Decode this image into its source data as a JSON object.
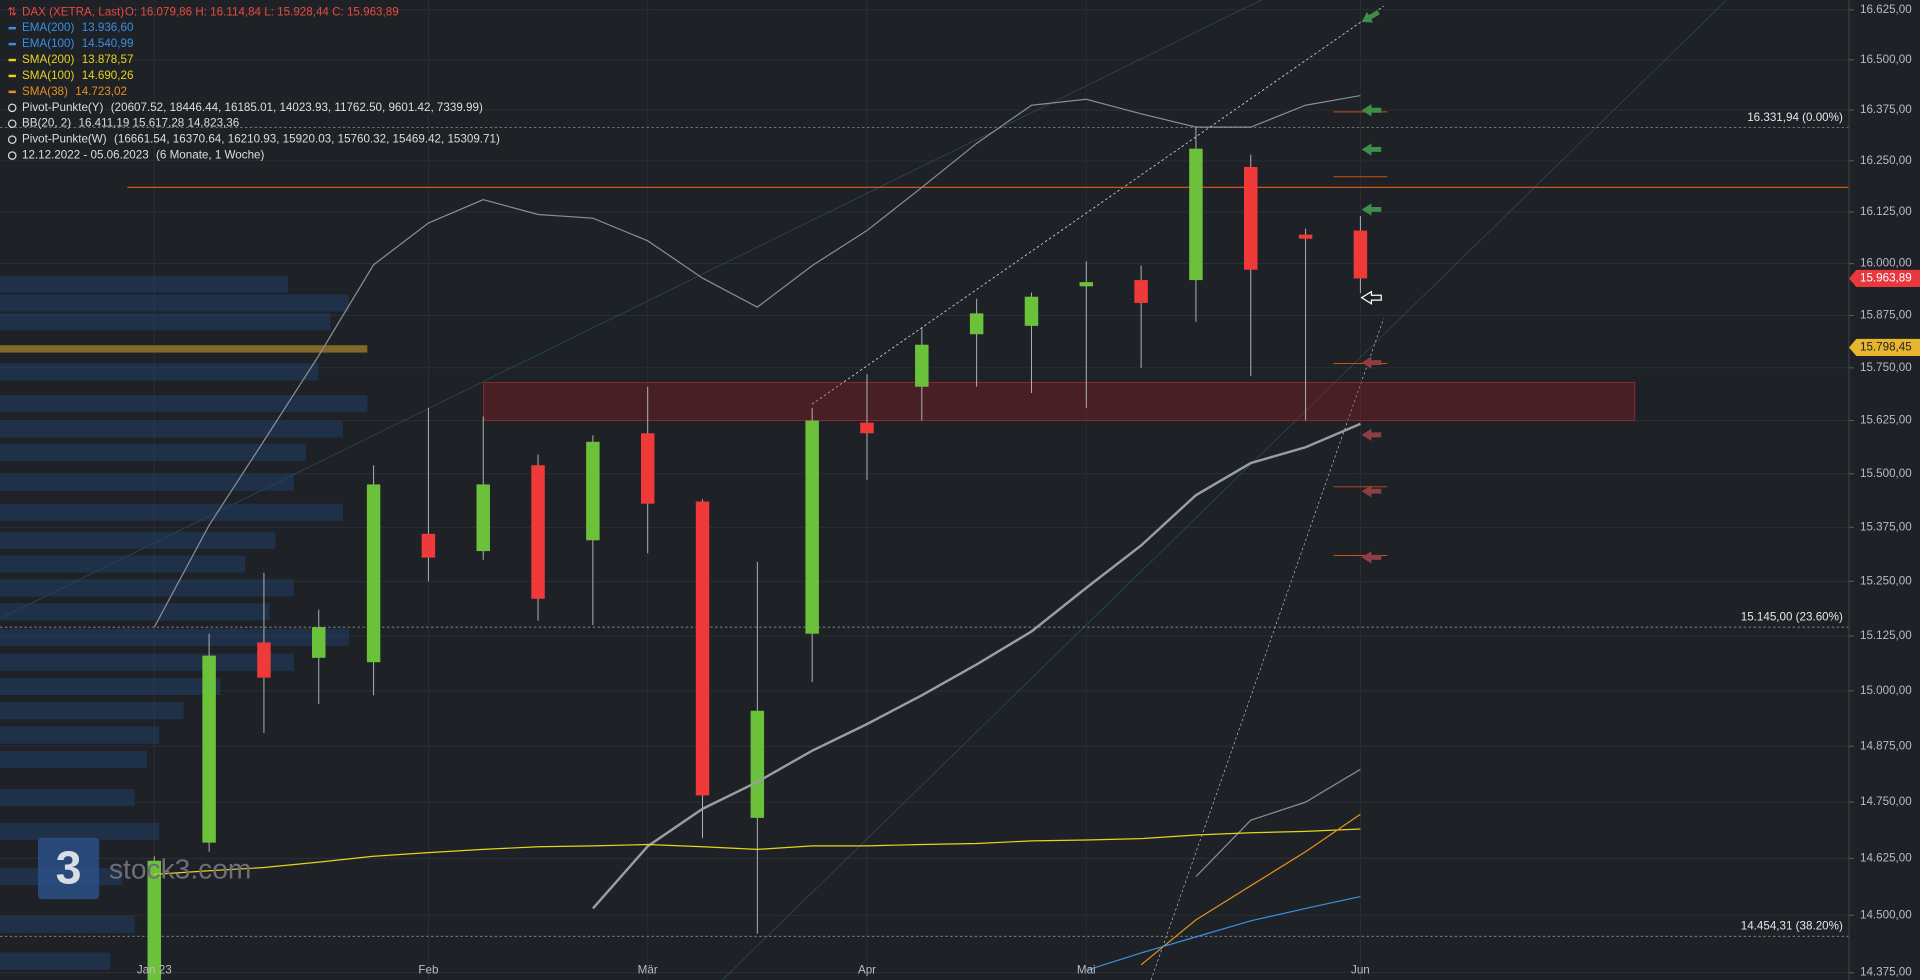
{
  "chart_data": {
    "type": "candlestick",
    "title": "DAX (XETRA, Last)",
    "subtitle": "O: 16.079,86  H: 16.114,84  L: 15.928,44  C: 15.963,89",
    "legend": [
      {
        "text": "EMA(200)",
        "value": "13.936,60",
        "color": "#3d8fe0"
      },
      {
        "text": "EMA(100)",
        "value": "14.540,99",
        "color": "#3d8fe0"
      },
      {
        "text": "SMA(200)",
        "value": "13.878,57",
        "color": "#e8d41c"
      },
      {
        "text": "SMA(100)",
        "value": "14.690,26",
        "color": "#e8d41c"
      },
      {
        "text": "SMA(38)",
        "value": "14.723,02",
        "color": "#e8901c"
      },
      {
        "text": "Pivot-Punkte(Y)",
        "value": "(20607.52,  18446.44,  16185.01,  14023.93,  11762.50,  9601.42,  7339.99)",
        "color": "#dddddd"
      },
      {
        "text": "BB(20, 2)",
        "value": "16.411,19  15.617,28  14.823,36",
        "color": "#dddddd"
      },
      {
        "text": "Pivot-Punkte(W)",
        "value": "(16661.54,  16370.64,  16210.93,  15920.03,  15760.32,  15469.42,  15309.71)",
        "color": "#dddddd"
      },
      {
        "text": "12.12.2022 - 05.06.2023",
        "value": "(6 Monate, 1 Woche)",
        "color": "#dddddd"
      }
    ],
    "categories": [
      "Jan 23",
      null,
      null,
      null,
      null,
      "Feb",
      null,
      null,
      null,
      "Mär",
      null,
      null,
      null,
      "Apr",
      null,
      null,
      null,
      "Mai",
      null,
      null,
      null,
      null,
      "Jun"
    ],
    "open": [
      14350,
      14660,
      15110,
      15075,
      15065,
      15360,
      15320,
      15520,
      15345,
      15595,
      15435,
      14715,
      15130,
      15620,
      15705,
      15830,
      15850,
      15945,
      15960,
      15960,
      16235,
      16070,
      16079.86
    ],
    "high": [
      14630,
      15130,
      15270,
      15185,
      15520,
      15655,
      15635,
      15545,
      15590,
      15705,
      15440,
      15295,
      15655,
      15735,
      15845,
      15915,
      15930,
      16005,
      15995,
      16335,
      16265,
      16085,
      16114.84
    ],
    "low": [
      14340,
      14640,
      14905,
      14970,
      14990,
      15250,
      15300,
      15160,
      15150,
      15315,
      14670,
      14460,
      15020,
      15485,
      15625,
      15705,
      15690,
      15655,
      15750,
      15860,
      15730,
      15625,
      15928.44
    ],
    "close": [
      14620,
      15080,
      15030,
      15145,
      15475,
      15305,
      15475,
      15210,
      15575,
      15430,
      14765,
      14955,
      15625,
      15595,
      15805,
      15880,
      15920,
      15955,
      15905,
      16280,
      15985,
      16060,
      15963.89
    ],
    "up_color": "#6cc13a",
    "down_color": "#f03a3a",
    "series": [
      {
        "name": "BB upper",
        "color": "#8a8d92",
        "width": 1,
        "values": [
          15145,
          15380,
          15577,
          15779,
          15997,
          16098,
          16155,
          16119,
          16110,
          16055,
          15965,
          15895,
          15995,
          16080,
          16185,
          16293,
          16387,
          16402,
          16366,
          16333,
          16333,
          16387,
          16411.19
        ]
      },
      {
        "name": "BB middle",
        "color": "#9a9da2",
        "width": 2,
        "values": [
          null,
          null,
          null,
          null,
          null,
          null,
          null,
          null,
          14515,
          14652,
          14735,
          14795,
          14865,
          14925,
          14990,
          15060,
          15135,
          15235,
          15333,
          15450,
          15525,
          15562,
          15617.28
        ]
      },
      {
        "name": "BB lower",
        "color": "#8a8d92",
        "width": 1,
        "values": [
          null,
          null,
          null,
          null,
          null,
          null,
          null,
          null,
          null,
          null,
          null,
          null,
          null,
          null,
          null,
          null,
          null,
          null,
          null,
          14585,
          14710,
          14750,
          14823.36
        ]
      },
      {
        "name": "SMA(100)",
        "color": "#e8d41c",
        "width": 1,
        "values": [
          14590,
          14598,
          14605,
          14617,
          14630,
          14638,
          14645,
          14651,
          14653,
          14656,
          14651,
          14645,
          14653,
          14653,
          14656,
          14658,
          14664,
          14666,
          14669,
          14677,
          14682,
          14685,
          14690.26
        ]
      },
      {
        "name": "SMA(38)",
        "color": "#e8901c",
        "width": 1,
        "values": [
          null,
          null,
          null,
          null,
          null,
          null,
          null,
          null,
          null,
          null,
          null,
          null,
          null,
          null,
          null,
          null,
          null,
          null,
          14392,
          14490,
          14565,
          14640,
          14723.02
        ]
      },
      {
        "name": "EMA(100)",
        "color": "#3d8fe0",
        "width": 1,
        "values": [
          null,
          null,
          null,
          null,
          null,
          null,
          null,
          null,
          null,
          null,
          null,
          null,
          null,
          null,
          null,
          null,
          null,
          14380,
          14418,
          14453,
          14488,
          14515,
          14540.99
        ]
      }
    ],
    "fib_levels": [
      {
        "value": 16331.94,
        "label": "16.331,94 (0.00%)"
      },
      {
        "value": 15145,
        "label": "15.145,00 (23.60%)"
      },
      {
        "value": 14454.31,
        "label": "14.454,31 (38.20%)"
      }
    ],
    "pivot_line": 16185.01,
    "zone": [
      15625,
      15715
    ],
    "weekly_pivots": [
      16370.64,
      16210.93,
      15760.32,
      15469.42,
      15309.71
    ],
    "price_tags": [
      {
        "value": 15963.89,
        "label": "15.963,89",
        "color": "#e8383d"
      },
      {
        "value": 15798.45,
        "label": "15.798,45",
        "color": "#e8b62c"
      }
    ],
    "volume_profile": {
      "prices": [
        15950,
        15905,
        15860,
        15795,
        15740,
        15665,
        15605,
        15550,
        15480,
        15410,
        15345,
        15290,
        15235,
        15180,
        15122,
        15065,
        15010,
        14955,
        14900,
        14845,
        14760,
        14685,
        14585,
        14480,
        14400
      ],
      "values": [
        235,
        285,
        270,
        300,
        260,
        300,
        280,
        250,
        240,
        280,
        225,
        200,
        240,
        220,
        285,
        240,
        180,
        150,
        130,
        120,
        110,
        130,
        100,
        110,
        90
      ],
      "poc_index": 3
    },
    "log_scale": true,
    "ylim": [
      14375,
      16625
    ],
    "yticks": [
      {
        "value": 16625,
        "label": "16.625,00"
      },
      {
        "value": 16500,
        "label": "16.500,00"
      },
      {
        "value": 16375,
        "label": "16.375,00"
      },
      {
        "value": 16250,
        "label": "16.250,00"
      },
      {
        "value": 16125,
        "label": "16.125,00"
      },
      {
        "value": 16000,
        "label": "16.000,00"
      },
      {
        "value": 15875,
        "label": "15.875,00"
      },
      {
        "value": 15750,
        "label": "15.750,00"
      },
      {
        "value": 15625,
        "label": "15.625,00"
      },
      {
        "value": 15500,
        "label": "15.500,00"
      },
      {
        "value": 15375,
        "label": "15.375,00"
      },
      {
        "value": 15250,
        "label": "15.250,00"
      },
      {
        "value": 15125,
        "label": "15.125,00"
      },
      {
        "value": 15000,
        "label": "15.000,00"
      },
      {
        "value": 14875,
        "label": "14.875,00"
      },
      {
        "value": 14750,
        "label": "14.750,00"
      },
      {
        "value": 14625,
        "label": "14.625,00"
      },
      {
        "value": 14500,
        "label": "14.500,00"
      },
      {
        "value": 14375,
        "label": "14.375,00"
      }
    ],
    "grid": true,
    "watermark": {
      "logo": "3",
      "text": "stock3.com"
    }
  }
}
